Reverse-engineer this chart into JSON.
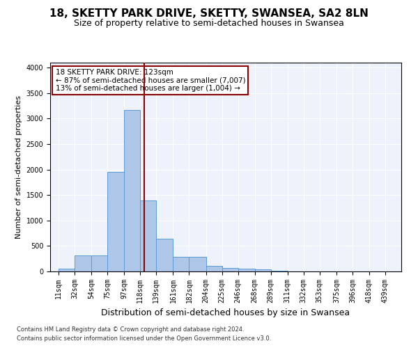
{
  "title1": "18, SKETTY PARK DRIVE, SKETTY, SWANSEA, SA2 8LN",
  "title2": "Size of property relative to semi-detached houses in Swansea",
  "xlabel": "Distribution of semi-detached houses by size in Swansea",
  "ylabel": "Number of semi-detached properties",
  "footer1": "Contains HM Land Registry data © Crown copyright and database right 2024.",
  "footer2": "Contains public sector information licensed under the Open Government Licence v3.0.",
  "annotation_title": "18 SKETTY PARK DRIVE: 123sqm",
  "annotation_line1": "← 87% of semi-detached houses are smaller (7,007)",
  "annotation_line2": "13% of semi-detached houses are larger (1,004) →",
  "property_size": 123,
  "bar_left_edges": [
    11,
    32,
    54,
    75,
    97,
    118,
    139,
    161,
    182,
    204,
    225,
    246,
    268,
    289,
    311,
    332,
    353,
    375,
    396,
    418,
    439
  ],
  "bar_heights": [
    50,
    320,
    320,
    1960,
    3170,
    1400,
    640,
    290,
    290,
    110,
    70,
    55,
    40,
    10,
    5,
    3,
    2,
    2,
    1,
    1,
    0
  ],
  "bar_color": "#aec6e8",
  "bar_edge_color": "#5b9bd5",
  "vline_color": "#8b0000",
  "vline_x": 123,
  "annotation_box_color": "#8b0000",
  "bg_color": "#eef2fa",
  "ylim": [
    0,
    4100
  ],
  "xlim": [
    0,
    460
  ],
  "yticks": [
    0,
    500,
    1000,
    1500,
    2000,
    2500,
    3000,
    3500,
    4000
  ],
  "xtick_labels": [
    "11sqm",
    "32sqm",
    "54sqm",
    "75sqm",
    "97sqm",
    "118sqm",
    "139sqm",
    "161sqm",
    "182sqm",
    "204sqm",
    "225sqm",
    "246sqm",
    "268sqm",
    "289sqm",
    "311sqm",
    "332sqm",
    "353sqm",
    "375sqm",
    "396sqm",
    "418sqm",
    "439sqm"
  ],
  "title1_fontsize": 11,
  "title2_fontsize": 9,
  "xlabel_fontsize": 9,
  "ylabel_fontsize": 8,
  "tick_fontsize": 7,
  "annotation_fontsize": 7.5,
  "footer_fontsize": 6
}
